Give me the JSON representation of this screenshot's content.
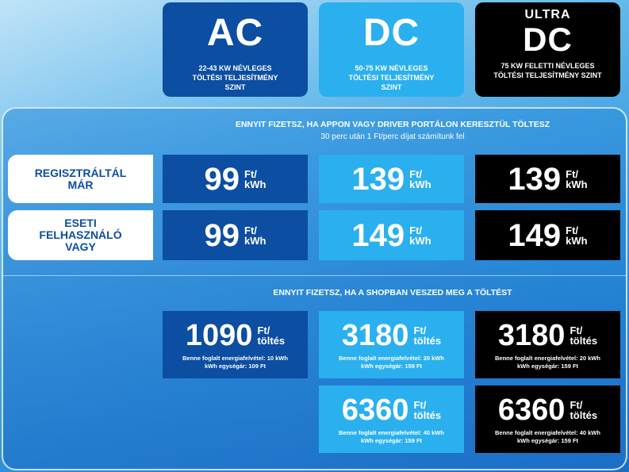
{
  "header": {
    "ac": {
      "title": "AC",
      "subtitle": "22-43 kW NÉVLEGES TÖLTÉSI TELJESÍTMÉNY SZINT"
    },
    "dc": {
      "title": "DC",
      "subtitle": "50-75 kW NÉVLEGES TÖLTÉSI TELJESÍTMÉNY SZINT"
    },
    "ultra": {
      "prefix": "ULTRA",
      "title": "DC",
      "subtitle": "75 kW FELETTI NÉVLEGES TÖLTÉSI TELJESÍTMÉNY SZINT"
    }
  },
  "app_section": {
    "title": "ENNYIT FIZETSZ, HA APPON VAGY DRIVER PORTÁLON KERESZTÜL TÖLTESZ",
    "subtitle": "30 perc után 1 Ft/perc díjat számítunk fel",
    "unit_top": "Ft/",
    "unit_bottom": "kWh",
    "rows": [
      {
        "label_line1": "REGISZTRÁLTÁL",
        "label_line2": "MÁR",
        "label_line3": "",
        "ac": "99",
        "dc": "139",
        "ultra": "139"
      },
      {
        "label_line1": "ESETI",
        "label_line2": "FELHASZNÁLÓ",
        "label_line3": "VAGY",
        "ac": "99",
        "dc": "149",
        "ultra": "149"
      }
    ]
  },
  "shop_section": {
    "title": "ENNYIT FIZETSZ, HA A SHOPBAN VESZED MEG A TÖLTÉST",
    "unit_top": "Ft/",
    "unit_bottom": "töltés",
    "ac": {
      "price": "1090",
      "energy": "Benne foglalt energiafelvétel: 10 kWh",
      "unit_price": "kWh egységár: 109 Ft"
    },
    "dc1": {
      "price": "3180",
      "energy": "Benne foglalt energiafelvétel: 20 kWh",
      "unit_price": "kWh egységár: 159 Ft"
    },
    "ultra1": {
      "price": "3180",
      "energy": "Benne foglalt energiafelvétel: 20 kWh",
      "unit_price": "kWh egységár: 159 Ft"
    },
    "dc2": {
      "price": "6360",
      "energy": "Benne foglalt energiafelvétel: 40 kWh",
      "unit_price": "kWh egységár: 159 Ft"
    },
    "ultra2": {
      "price": "6360",
      "energy": "Benne foglalt energiafelvétel: 40 kWh",
      "unit_price": "kWh egységár: 159 Ft"
    }
  },
  "colors": {
    "ac": "#0b4ea2",
    "dc": "#2ab0ee",
    "ultra": "#000000"
  }
}
